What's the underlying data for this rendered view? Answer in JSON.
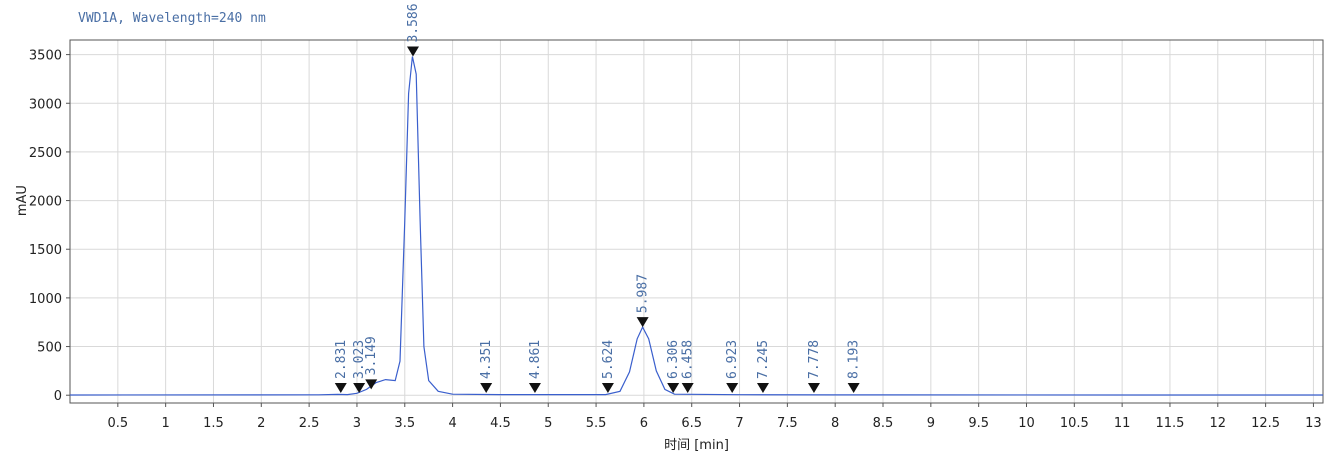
{
  "chart_data": {
    "type": "line",
    "title": "VWD1A, Wavelength=240 nm",
    "xlabel": "时间 [min]",
    "ylabel": "mAU",
    "xlim": [
      0,
      13.1
    ],
    "ylim": [
      -80,
      3650
    ],
    "x_ticks": [
      "0.5",
      "1",
      "1.5",
      "2",
      "2.5",
      "3",
      "3.5",
      "4",
      "4.5",
      "5",
      "5.5",
      "6",
      "6.5",
      "7",
      "7.5",
      "8",
      "8.5",
      "9",
      "9.5",
      "10",
      "10.5",
      "11",
      "11.5",
      "12",
      "12.5",
      "13"
    ],
    "y_ticks": [
      0,
      500,
      1000,
      1500,
      2000,
      2500,
      3000,
      3500
    ],
    "grid": true,
    "colors": {
      "trace": "#3a5fcd",
      "label": "#4a6fa5",
      "marker": "#111111",
      "grid": "#d9d9d9"
    },
    "peaks": [
      {
        "label": "2.831",
        "x": 2.831,
        "y": 20
      },
      {
        "label": "3.023",
        "x": 3.023,
        "y": 20
      },
      {
        "label": "3.149",
        "x": 3.149,
        "y": 60
      },
      {
        "label": "3.586",
        "x": 3.586,
        "y": 3480
      },
      {
        "label": "4.351",
        "x": 4.351,
        "y": 10
      },
      {
        "label": "4.861",
        "x": 4.861,
        "y": 10
      },
      {
        "label": "5.624",
        "x": 5.624,
        "y": 10
      },
      {
        "label": "5.987",
        "x": 5.987,
        "y": 700
      },
      {
        "label": "6.306",
        "x": 6.306,
        "y": 10
      },
      {
        "label": "6.458",
        "x": 6.458,
        "y": 10
      },
      {
        "label": "6.923",
        "x": 6.923,
        "y": 10
      },
      {
        "label": "7.245",
        "x": 7.245,
        "y": 10
      },
      {
        "label": "7.778",
        "x": 7.778,
        "y": 10
      },
      {
        "label": "8.193",
        "x": 8.193,
        "y": 10
      }
    ],
    "trace": [
      [
        0.0,
        2
      ],
      [
        2.6,
        4
      ],
      [
        2.8,
        8
      ],
      [
        2.9,
        6
      ],
      [
        3.0,
        20
      ],
      [
        3.1,
        60
      ],
      [
        3.2,
        130
      ],
      [
        3.3,
        160
      ],
      [
        3.4,
        150
      ],
      [
        3.45,
        350
      ],
      [
        3.5,
        1800
      ],
      [
        3.54,
        3100
      ],
      [
        3.58,
        3480
      ],
      [
        3.62,
        3300
      ],
      [
        3.66,
        1800
      ],
      [
        3.7,
        500
      ],
      [
        3.75,
        150
      ],
      [
        3.85,
        40
      ],
      [
        4.0,
        10
      ],
      [
        4.5,
        6
      ],
      [
        5.6,
        6
      ],
      [
        5.75,
        40
      ],
      [
        5.85,
        240
      ],
      [
        5.93,
        580
      ],
      [
        5.987,
        700
      ],
      [
        6.05,
        580
      ],
      [
        6.13,
        250
      ],
      [
        6.22,
        60
      ],
      [
        6.32,
        10
      ],
      [
        7.0,
        5
      ],
      [
        8.0,
        3
      ],
      [
        13.1,
        2
      ]
    ]
  }
}
